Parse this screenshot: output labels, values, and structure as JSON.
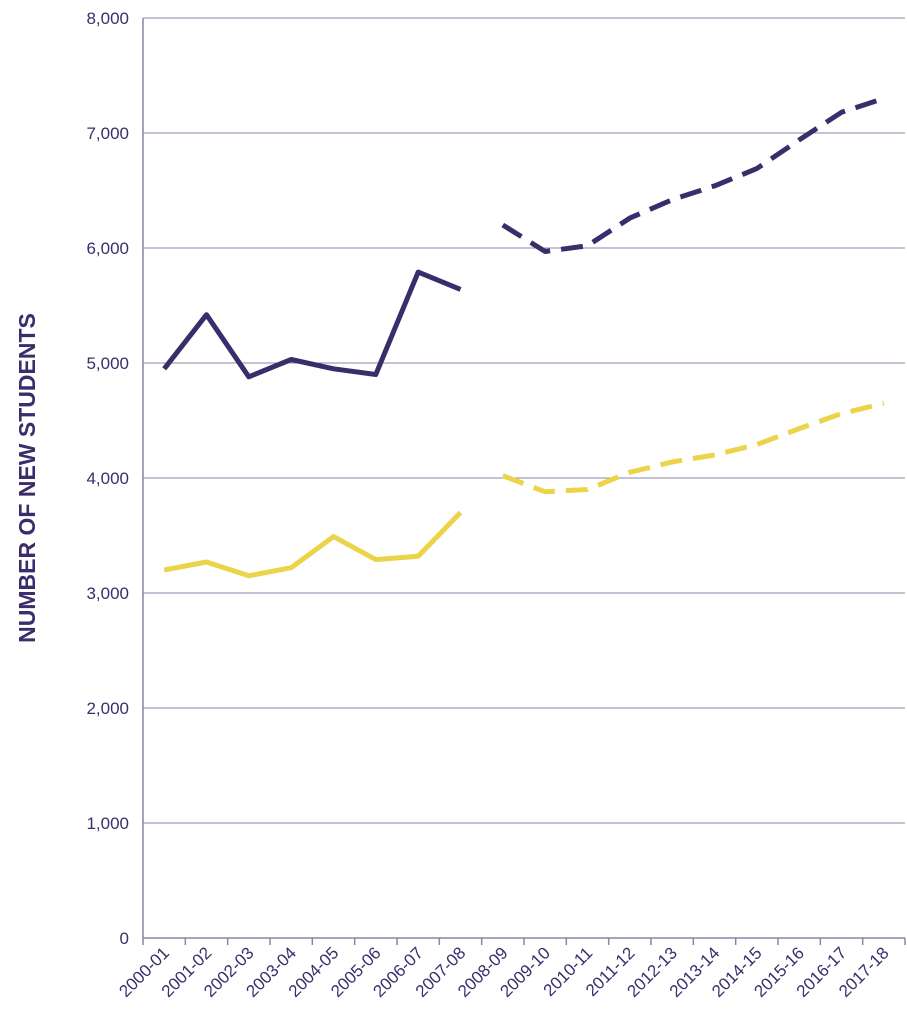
{
  "chart_data": {
    "type": "line",
    "title": "",
    "xlabel": "",
    "ylabel": "NUMBER OF NEW STUDENTS",
    "ylim": [
      0,
      8000
    ],
    "yticks": [
      "0",
      "1,000",
      "2,000",
      "3,000",
      "4,000",
      "5,000",
      "6,000",
      "7,000",
      "8,000"
    ],
    "grid": true,
    "categories": [
      "2000-01",
      "2001-02",
      "2002-03",
      "2003-04",
      "2004-05",
      "2005-06",
      "2006-07",
      "2007-08",
      "2008-09",
      "2009-10",
      "2010-11",
      "2011-12",
      "2012-13",
      "2013-14",
      "2014-15",
      "2015-16",
      "2016-17",
      "2017-18"
    ],
    "series": [
      {
        "color": "#3b2d6b",
        "style": "solid",
        "values": [
          4950,
          5420,
          4880,
          5030,
          4950,
          4900,
          5790,
          5640,
          null,
          null,
          null,
          null,
          null,
          null,
          null,
          null,
          null,
          null
        ]
      },
      {
        "color": "#3b2d6b",
        "style": "dashed",
        "values": [
          null,
          null,
          null,
          null,
          null,
          null,
          null,
          null,
          6200,
          5970,
          6020,
          6260,
          6420,
          6540,
          6690,
          6940,
          7180,
          7300
        ]
      },
      {
        "color": "#ecd44a",
        "style": "solid",
        "values": [
          3200,
          3270,
          3150,
          3220,
          3490,
          3290,
          3320,
          3700,
          null,
          null,
          null,
          null,
          null,
          null,
          null,
          null,
          null,
          null
        ]
      },
      {
        "color": "#ecd44a",
        "style": "dashed",
        "values": [
          null,
          null,
          null,
          null,
          null,
          null,
          null,
          null,
          4020,
          3880,
          3900,
          4050,
          4140,
          4200,
          4290,
          4430,
          4560,
          4650
        ]
      }
    ]
  }
}
